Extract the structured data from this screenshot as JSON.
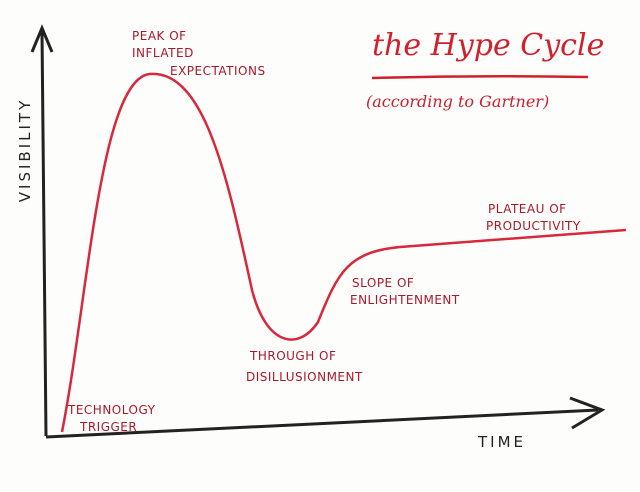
{
  "title": "the Hype Cycle",
  "subtitle": "(according to Gartner)",
  "axes": {
    "y_label": "VISIBILITY",
    "x_label": "TIME"
  },
  "phases": [
    {
      "lines": [
        "PEAK OF",
        "INFLATED",
        "EXPECTATIONS"
      ]
    },
    {
      "lines": [
        "PLATEAU OF",
        "PRODUCTIVITY"
      ]
    },
    {
      "lines": [
        "SLOPE OF",
        "ENLIGHTENMENT"
      ]
    },
    {
      "lines": [
        "THROUGH OF",
        "DISILLUSIONMENT"
      ]
    },
    {
      "lines": [
        "TECHNOLOGY",
        "TRIGGER"
      ]
    }
  ]
}
